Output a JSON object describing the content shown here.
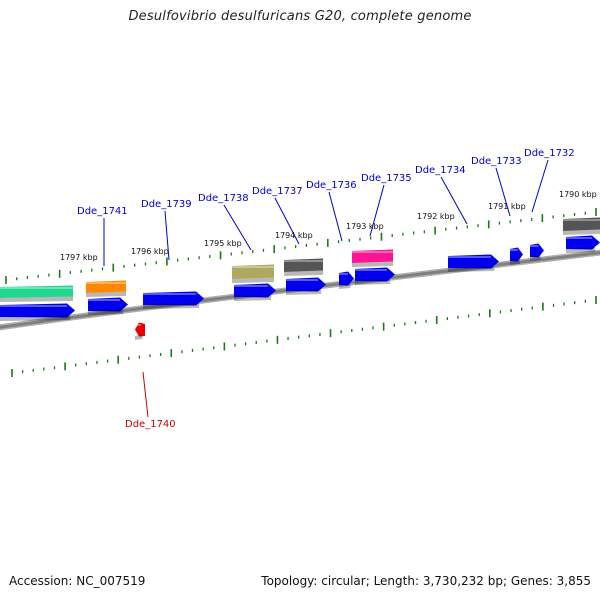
{
  "title": "Desulfovibrio desulfuricans G20, complete genome",
  "footer": {
    "accession_label": "Accession:",
    "accession_value": "NC_007519",
    "topology_label": "Topology:",
    "topology_value": "circular;",
    "length_label": "Length:",
    "length_value": "3,730,232 bp;",
    "genes_label": "Genes:",
    "genes_value": "3,855"
  },
  "colors": {
    "backbone": "#808080",
    "ticks": "#1a7a1a",
    "label_forward": "#0000cc",
    "label_highlight": "#cc0000",
    "gene_blue": "#0000ee",
    "gene_green": "#20d890",
    "gene_orange": "#ff8800",
    "gene_olive": "#b0a860",
    "gene_gray": "#555555",
    "gene_pink": "#ff1493",
    "gene_red": "#ee0000"
  },
  "scale_labels": [
    "1797 kbp",
    "1796 kbp",
    "1795 kbp",
    "1794 kbp",
    "1793 kbp",
    "1792 kbp",
    "1791 kbp",
    "1790 kbp"
  ],
  "gene_labels": [
    "Dde_1741",
    "Dde_1739",
    "Dde_1738",
    "Dde_1737",
    "Dde_1736",
    "Dde_1735",
    "Dde_1734",
    "Dde_1733",
    "Dde_1732",
    "Dde_1740"
  ],
  "highlighted_gene": "Dde_1740"
}
